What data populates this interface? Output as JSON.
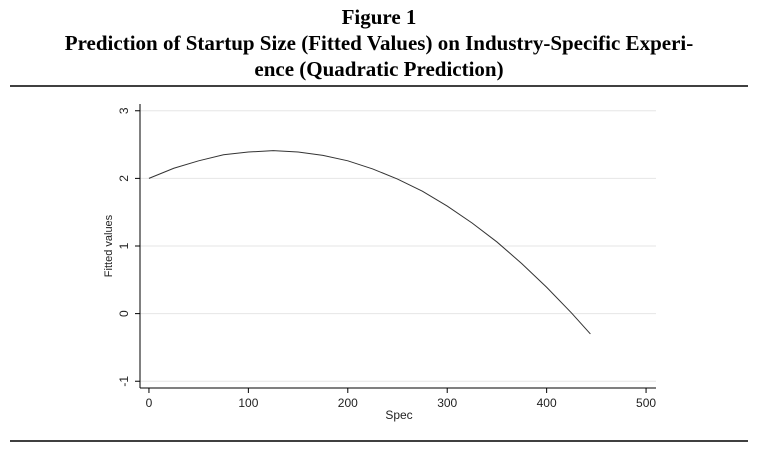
{
  "figure_label": "Figure 1",
  "title_lines": [
    "Prediction of Startup Size (Fitted Values) on Industry-Specific Experi-",
    "ence (Quadratic Prediction)"
  ],
  "chart_data": {
    "type": "line",
    "x_label": "Spec",
    "y_label": "Fitted values",
    "x": [
      0,
      25,
      50,
      75,
      100,
      125,
      150,
      175,
      200,
      225,
      250,
      275,
      300,
      325,
      350,
      375,
      400,
      425,
      444
    ],
    "series": [
      {
        "name": "Fitted values",
        "color": "#333333",
        "values": [
          2.0,
          2.15,
          2.26,
          2.35,
          2.39,
          2.41,
          2.39,
          2.34,
          2.26,
          2.14,
          1.99,
          1.81,
          1.59,
          1.34,
          1.06,
          0.74,
          0.39,
          0.01,
          -0.3
        ]
      }
    ],
    "xlim": [
      -9,
      510
    ],
    "ylim": [
      -1.1,
      3.1
    ],
    "xticks": [
      0,
      100,
      200,
      300,
      400,
      500
    ],
    "yticks": [
      -1,
      0,
      1,
      2,
      3
    ],
    "grid": true
  }
}
